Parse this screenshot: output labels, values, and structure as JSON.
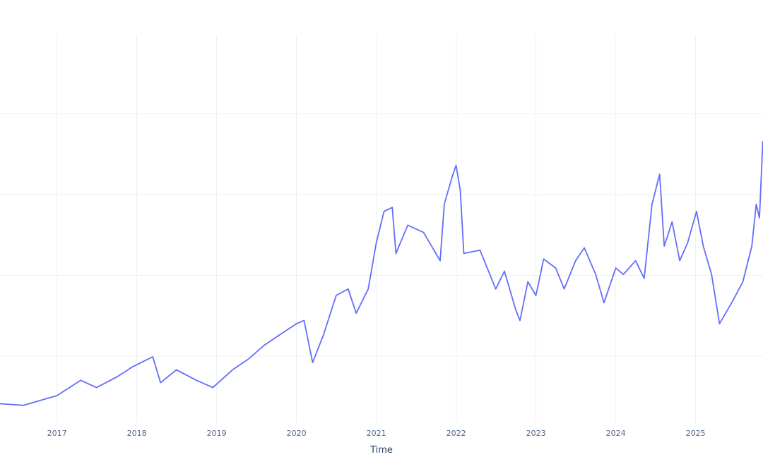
{
  "chart_data": {
    "type": "line",
    "title": "",
    "xlabel": "Time",
    "ylabel": "",
    "x_ticks": [
      "2017",
      "2018",
      "2019",
      "2020",
      "2021",
      "2022",
      "2023",
      "2024",
      "2025"
    ],
    "y_gridlines": [
      1,
      2,
      3,
      4
    ],
    "ylim": [
      0.17,
      4.97
    ],
    "xlim": [
      "2016-04-15",
      "2025-11-05"
    ],
    "grid": true,
    "legend": "none",
    "line_color": "#636efa",
    "grid_color": "#ebf0f8",
    "series": [
      {
        "x": [
          "2016-04-15",
          "2016-08-01",
          "2017-01-01",
          "2017-04-20",
          "2017-07-01",
          "2017-10-01",
          "2017-12-15",
          "2018-02-05",
          "2018-03-15",
          "2018-04-20",
          "2018-07-01",
          "2018-10-01",
          "2018-12-15",
          "2019-03-15",
          "2019-05-25",
          "2019-08-05",
          "2019-10-20",
          "2020-01-01",
          "2020-02-05",
          "2020-03-15",
          "2020-05-05",
          "2020-07-01",
          "2020-08-25",
          "2020-10-01",
          "2020-11-25",
          "2021-01-01",
          "2021-02-05",
          "2021-03-15",
          "2021-04-01",
          "2021-05-25",
          "2021-08-05",
          "2021-10-20",
          "2021-11-08",
          "2021-12-15",
          "2022-01-01",
          "2022-01-20",
          "2022-02-05",
          "2022-04-20",
          "2022-07-01",
          "2022-08-10",
          "2022-10-01",
          "2022-10-20",
          "2022-11-25",
          "2023-01-01",
          "2023-02-05",
          "2023-04-01",
          "2023-05-10",
          "2023-07-01",
          "2023-08-10",
          "2023-10-01",
          "2023-11-08",
          "2024-01-01",
          "2024-02-05",
          "2024-04-01",
          "2024-05-10",
          "2024-06-15",
          "2024-07-20",
          "2024-08-10",
          "2024-09-15",
          "2024-10-20",
          "2024-11-25",
          "2025-01-05",
          "2025-02-05",
          "2025-03-15",
          "2025-04-20",
          "2025-06-15",
          "2025-08-05",
          "2025-09-15",
          "2025-10-05",
          "2025-10-20",
          "2025-11-04"
        ],
        "y": [
          0.41,
          0.39,
          0.51,
          0.7,
          0.61,
          0.74,
          0.87,
          0.94,
          0.99,
          0.67,
          0.83,
          0.7,
          0.61,
          0.83,
          0.96,
          1.13,
          1.27,
          1.4,
          1.44,
          0.92,
          1.27,
          1.75,
          1.83,
          1.53,
          1.83,
          2.4,
          2.79,
          2.84,
          2.27,
          2.62,
          2.53,
          2.18,
          2.88,
          3.23,
          3.36,
          3.05,
          2.27,
          2.31,
          1.83,
          2.05,
          1.57,
          1.44,
          1.92,
          1.75,
          2.2,
          2.09,
          1.83,
          2.18,
          2.34,
          2.01,
          1.66,
          2.09,
          2.01,
          2.18,
          1.96,
          2.88,
          3.25,
          2.36,
          2.66,
          2.18,
          2.4,
          2.79,
          2.36,
          2.01,
          1.4,
          1.66,
          1.92,
          2.36,
          2.88,
          2.71,
          3.66
        ]
      }
    ]
  }
}
